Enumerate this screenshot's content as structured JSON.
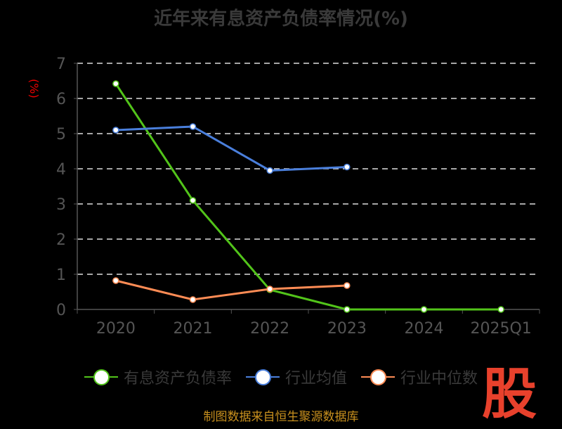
{
  "chart_data": {
    "type": "line",
    "title": "近年来有息资产负债率情况(%)",
    "ylabel": "(%)",
    "categories": [
      "2020",
      "2021",
      "2022",
      "2023",
      "2024",
      "2025Q1"
    ],
    "ylim": [
      0,
      7
    ],
    "yticks": [
      "0",
      "1",
      "2",
      "3",
      "4",
      "5",
      "6",
      "7"
    ],
    "grid": true,
    "legend": "bottom",
    "series": [
      {
        "name": "有息资产负债率",
        "color": "#52c41a",
        "values": [
          6.42,
          3.1,
          0.56,
          0,
          0,
          0
        ]
      },
      {
        "name": "行业均值",
        "color": "#4a7fdc",
        "values": [
          5.1,
          5.2,
          3.95,
          4.05,
          null,
          null
        ]
      },
      {
        "name": "行业中位数",
        "color": "#ff8c55",
        "values": [
          0.82,
          0.28,
          0.58,
          0.68,
          null,
          null
        ]
      }
    ]
  },
  "source": "制图数据来自恒生聚源数据库",
  "watermark": "股"
}
